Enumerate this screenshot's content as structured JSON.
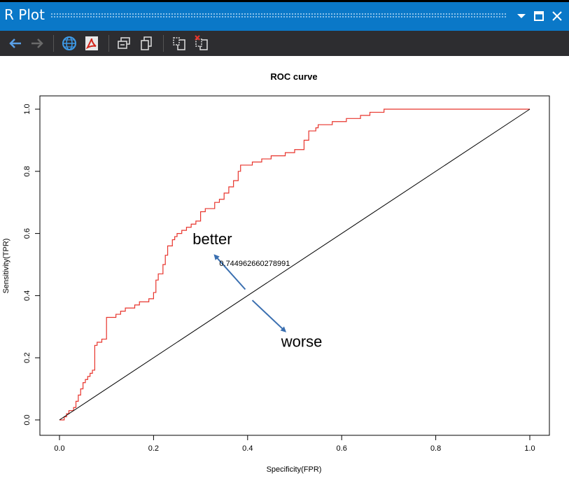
{
  "window": {
    "title": "R Plot",
    "controls": [
      "dropdown-icon",
      "maximize-icon",
      "close-icon"
    ]
  },
  "toolbar": {
    "buttons": [
      {
        "icon": "back-arrow-icon",
        "enabled": true
      },
      {
        "icon": "forward-arrow-icon",
        "enabled": false
      },
      {
        "icon": "globe-icon"
      },
      {
        "icon": "pdf-icon"
      },
      {
        "icon": "copy-as-bitmap-icon"
      },
      {
        "icon": "copy-as-metafile-icon"
      },
      {
        "icon": "export-icon"
      },
      {
        "icon": "remove-plot-icon"
      }
    ]
  },
  "colors": {
    "titlebar": "#0a78c8",
    "toolbar": "#2d2d30",
    "roc_line": "#e8342c",
    "arrow": "#3a6fb0"
  },
  "chart_data": {
    "type": "line",
    "title": "ROC curve",
    "xlabel": "Specificity(FPR)",
    "ylabel": "Sensitivity(TPR)",
    "xlim": [
      0,
      1
    ],
    "ylim": [
      0,
      1
    ],
    "xticks": [
      "0.0",
      "0.2",
      "0.4",
      "0.6",
      "0.8",
      "1.0"
    ],
    "yticks": [
      "0.0",
      "0.2",
      "0.4",
      "0.6",
      "0.8",
      "1.0"
    ],
    "grid": false,
    "series": [
      {
        "color": "#e8342c",
        "step": true,
        "x": [
          0,
          0.01,
          0.015,
          0.02,
          0.03,
          0.035,
          0.04,
          0.045,
          0.05,
          0.055,
          0.06,
          0.065,
          0.07,
          0.075,
          0.08,
          0.085,
          0.09,
          0.1,
          0.105,
          0.11,
          0.12,
          0.13,
          0.14,
          0.15,
          0.16,
          0.17,
          0.18,
          0.19,
          0.2,
          0.205,
          0.21,
          0.22,
          0.225,
          0.23,
          0.24,
          0.245,
          0.25,
          0.26,
          0.27,
          0.28,
          0.29,
          0.3,
          0.31,
          0.32,
          0.33,
          0.34,
          0.35,
          0.36,
          0.37,
          0.38,
          0.385,
          0.39,
          0.4,
          0.41,
          0.42,
          0.43,
          0.44,
          0.45,
          0.46,
          0.47,
          0.48,
          0.49,
          0.5,
          0.51,
          0.52,
          0.53,
          0.54,
          0.545,
          0.55,
          0.56,
          0.565,
          0.57,
          0.58,
          0.59,
          0.6,
          0.61,
          0.62,
          0.63,
          0.64,
          0.65,
          0.66,
          0.67,
          0.68,
          0.69,
          0.7,
          0.71,
          1.0
        ],
        "y": [
          0,
          0.01,
          0.02,
          0.03,
          0.04,
          0.06,
          0.08,
          0.1,
          0.12,
          0.13,
          0.14,
          0.15,
          0.16,
          0.24,
          0.25,
          0.25,
          0.26,
          0.33,
          0.33,
          0.33,
          0.34,
          0.35,
          0.36,
          0.36,
          0.37,
          0.38,
          0.38,
          0.39,
          0.41,
          0.45,
          0.47,
          0.5,
          0.53,
          0.56,
          0.58,
          0.59,
          0.6,
          0.61,
          0.62,
          0.63,
          0.64,
          0.67,
          0.68,
          0.68,
          0.7,
          0.71,
          0.73,
          0.75,
          0.77,
          0.8,
          0.82,
          0.82,
          0.82,
          0.83,
          0.83,
          0.84,
          0.84,
          0.85,
          0.85,
          0.85,
          0.86,
          0.86,
          0.87,
          0.87,
          0.9,
          0.93,
          0.93,
          0.94,
          0.95,
          0.95,
          0.95,
          0.95,
          0.96,
          0.96,
          0.96,
          0.97,
          0.97,
          0.97,
          0.98,
          0.98,
          0.99,
          0.99,
          0.99,
          1.0,
          1.0,
          1.0,
          1.0
        ]
      },
      {
        "color": "#000000",
        "x": [
          0,
          1
        ],
        "y": [
          0,
          1
        ]
      }
    ],
    "annotations": [
      {
        "text": "0.744962660278991",
        "x": 0.415,
        "y": 0.495
      },
      {
        "text": "better",
        "x": 0.325,
        "y": 0.565
      },
      {
        "text": "worse",
        "x": 0.515,
        "y": 0.235
      }
    ],
    "arrows": [
      {
        "from": [
          0.395,
          0.42
        ],
        "to": [
          0.33,
          0.53
        ]
      },
      {
        "from": [
          0.41,
          0.385
        ],
        "to": [
          0.48,
          0.285
        ]
      }
    ]
  }
}
